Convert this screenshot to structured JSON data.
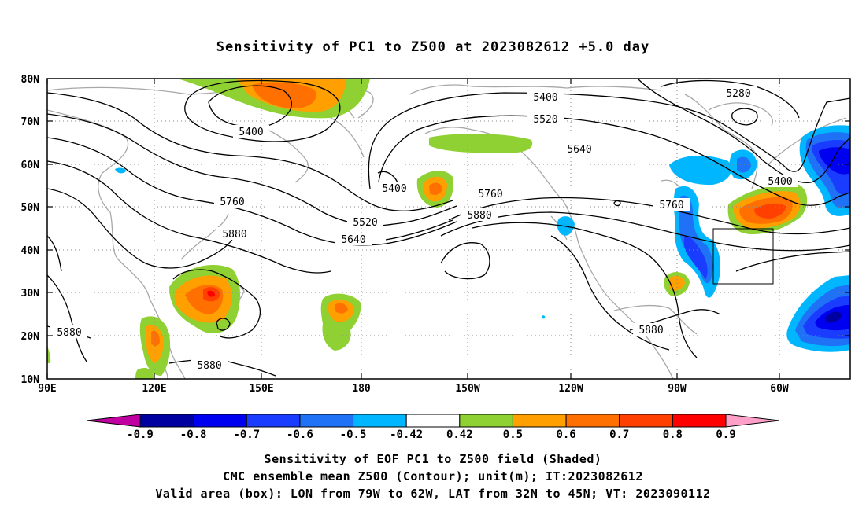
{
  "title": "Sensitivity of PC1 to Z500 at 2023082612 +5.0 day",
  "map": {
    "lon_ticks": [
      "90E",
      "120E",
      "150E",
      "180",
      "150W",
      "120W",
      "90W",
      "60W"
    ],
    "lat_ticks": [
      "10N",
      "20N",
      "30N",
      "40N",
      "50N",
      "60N",
      "70N",
      "80N"
    ],
    "valid_box": {
      "lon_west": "79W",
      "lon_east": "62W",
      "lat_south": "32N",
      "lat_north": "45N"
    },
    "contour_labels": [
      "5280",
      "5400",
      "5400",
      "5400",
      "5400",
      "5520",
      "5520",
      "5640",
      "5640",
      "5760",
      "5760",
      "5760",
      "5880",
      "5880",
      "5880",
      "5880",
      "5880"
    ]
  },
  "colorbar": {
    "labels": [
      "-0.9",
      "-0.8",
      "-0.7",
      "-0.6",
      "-0.5",
      "-0.42",
      "0.42",
      "0.5",
      "0.6",
      "0.7",
      "0.8",
      "0.9"
    ],
    "colors": [
      "#0000a0",
      "#0000f0",
      "#1a3cff",
      "#1f72f5",
      "#00b7ff",
      "#ffffff",
      "#8fd032",
      "#ffa000",
      "#ff7000",
      "#ff4000",
      "#ff0000"
    ],
    "low_end_color": "#c000a0",
    "high_end_color": "#ffa0c8"
  },
  "captions": {
    "line1": "Sensitivity of EOF PC1 to Z500 field (Shaded)",
    "line2": "CMC ensemble mean Z500 (Contour); unit(m); IT:2023082612",
    "line3": "Valid area (box): LON from 79W to 62W, LAT from 32N to 45N; VT: 2023090112"
  }
}
